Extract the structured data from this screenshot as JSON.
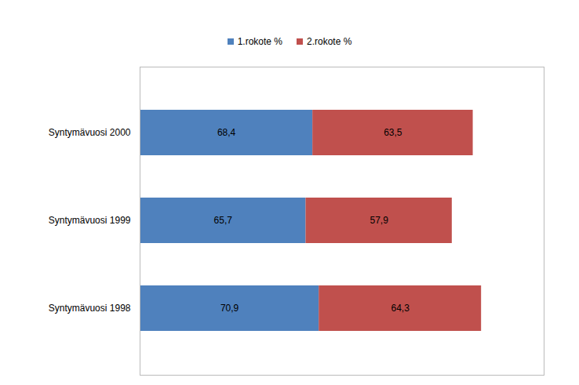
{
  "chart_data": {
    "type": "bar",
    "orientation": "horizontal",
    "stacked": true,
    "data_labels": true,
    "tick_labels": "y",
    "legend": "top",
    "categories": [
      "Syntymävuosi 2000",
      "Syntymävuosi 1999",
      "Syntymävuosi 1998"
    ],
    "series": [
      {
        "name": "1.rokote %",
        "color": "#4f81bd",
        "values": [
          68.4,
          65.7,
          70.9
        ],
        "value_labels": [
          "68,4",
          "65,7",
          "70,9"
        ]
      },
      {
        "name": "2.rokote %",
        "color": "#c0504d",
        "values": [
          63.5,
          57.9,
          64.3
        ],
        "value_labels": [
          "63,5",
          "57,9",
          "64,3"
        ]
      }
    ],
    "xlim": [
      0,
      160
    ]
  }
}
